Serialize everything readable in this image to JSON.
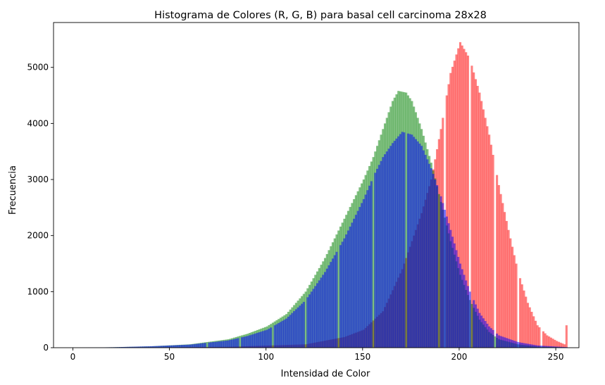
{
  "chart_data": {
    "type": "bar",
    "title": "Histograma de Colores (R, G, B) para basal cell carcinoma 28x28",
    "xlabel": "Intensidad de Color",
    "ylabel": "Frecuencia",
    "xlim": [
      -10,
      262
    ],
    "ylim": [
      0,
      5800
    ],
    "xticks": [
      0,
      50,
      100,
      150,
      200,
      250
    ],
    "yticks": [
      0,
      1000,
      2000,
      3000,
      4000,
      5000
    ],
    "bin_width": 1,
    "overlay_alpha": 0.5,
    "grid": false,
    "series": [
      {
        "channel": "R",
        "color": "#ff0000",
        "keypoints": [
          [
            0,
            0
          ],
          [
            40,
            5
          ],
          [
            80,
            15
          ],
          [
            120,
            60
          ],
          [
            140,
            190
          ],
          [
            150,
            320
          ],
          [
            160,
            650
          ],
          [
            170,
            1400
          ],
          [
            180,
            2400
          ],
          [
            185,
            3000
          ],
          [
            190,
            3900
          ],
          [
            195,
            4900
          ],
          [
            200,
            5450
          ],
          [
            205,
            5150
          ],
          [
            210,
            4550
          ],
          [
            215,
            3800
          ],
          [
            220,
            2900
          ],
          [
            225,
            2100
          ],
          [
            230,
            1350
          ],
          [
            235,
            800
          ],
          [
            240,
            400
          ],
          [
            245,
            220
          ],
          [
            250,
            120
          ],
          [
            254,
            60
          ]
        ],
        "gaps": [
          192,
          205,
          218,
          230,
          242
        ],
        "spikes": [
          [
            255,
            400
          ]
        ]
      },
      {
        "channel": "G",
        "color": "#008000",
        "keypoints": [
          [
            0,
            0
          ],
          [
            20,
            8
          ],
          [
            40,
            25
          ],
          [
            60,
            60
          ],
          [
            80,
            150
          ],
          [
            90,
            250
          ],
          [
            100,
            380
          ],
          [
            110,
            600
          ],
          [
            120,
            1000
          ],
          [
            130,
            1600
          ],
          [
            140,
            2300
          ],
          [
            150,
            3000
          ],
          [
            155,
            3400
          ],
          [
            160,
            3900
          ],
          [
            165,
            4400
          ],
          [
            168,
            4580
          ],
          [
            172,
            4550
          ],
          [
            175,
            4400
          ],
          [
            180,
            3900
          ],
          [
            185,
            3300
          ],
          [
            190,
            2600
          ],
          [
            195,
            1900
          ],
          [
            200,
            1300
          ],
          [
            205,
            850
          ],
          [
            210,
            500
          ],
          [
            215,
            280
          ],
          [
            220,
            150
          ],
          [
            230,
            60
          ],
          [
            240,
            20
          ],
          [
            255,
            5
          ]
        ],
        "gaps": [],
        "spikes": []
      },
      {
        "channel": "B",
        "color": "#0000ff",
        "keypoints": [
          [
            0,
            0
          ],
          [
            20,
            8
          ],
          [
            40,
            25
          ],
          [
            60,
            55
          ],
          [
            80,
            130
          ],
          [
            90,
            210
          ],
          [
            100,
            320
          ],
          [
            110,
            520
          ],
          [
            120,
            850
          ],
          [
            130,
            1350
          ],
          [
            140,
            1950
          ],
          [
            150,
            2650
          ],
          [
            155,
            3050
          ],
          [
            160,
            3400
          ],
          [
            165,
            3650
          ],
          [
            170,
            3850
          ],
          [
            175,
            3800
          ],
          [
            180,
            3600
          ],
          [
            185,
            3200
          ],
          [
            190,
            2700
          ],
          [
            195,
            2100
          ],
          [
            200,
            1500
          ],
          [
            205,
            1000
          ],
          [
            210,
            620
          ],
          [
            215,
            380
          ],
          [
            220,
            220
          ],
          [
            230,
            100
          ],
          [
            240,
            40
          ],
          [
            255,
            10
          ]
        ],
        "gaps": [
          69,
          86,
          103,
          120,
          137,
          155,
          172,
          189,
          206,
          218
        ],
        "spikes": []
      }
    ]
  }
}
